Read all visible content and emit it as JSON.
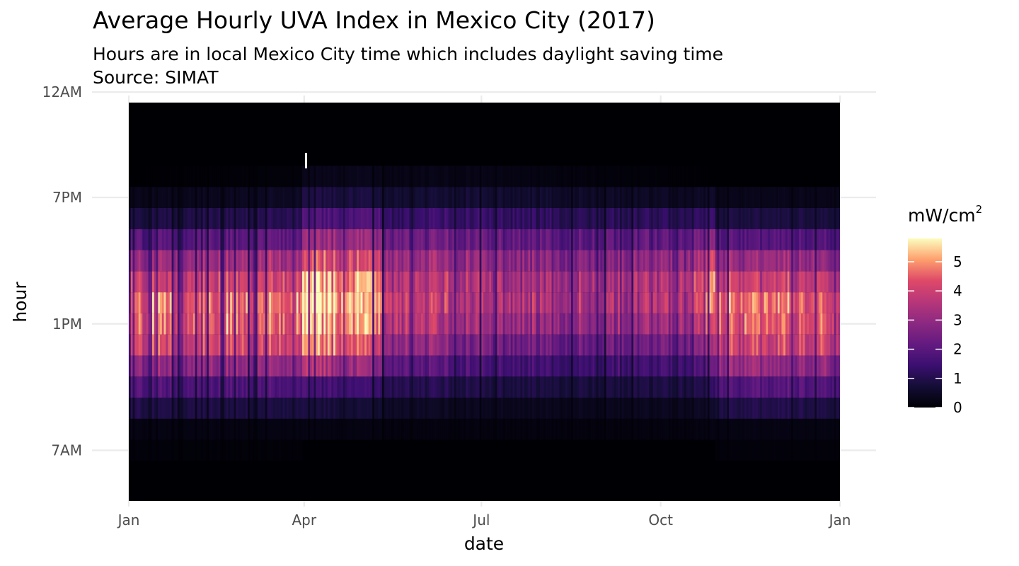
{
  "header": {
    "title": "Average Hourly UVA Index in Mexico City (2017)",
    "subtitle_line1": "Hours are in local Mexico City time which includes daylight saving time",
    "subtitle_line2": "Source: SIMAT"
  },
  "colors": {
    "panel_background": "#000004",
    "gridline": "#ebebeb",
    "colormap": "magma"
  },
  "chart_data": {
    "type": "heatmap",
    "title": "Average Hourly UVA Index in Mexico City (2017)",
    "subtitle": "Hours are in local Mexico City time which includes daylight saving time / Source: SIMAT",
    "xlabel": "date",
    "ylabel": "hour",
    "x_tick_labels": [
      "Jan",
      "Apr",
      "Jul",
      "Oct",
      "Jan"
    ],
    "y_tick_labels": [
      "12AM",
      "7PM",
      "1PM",
      "7AM"
    ],
    "x_range": [
      "2017-01-01",
      "2018-01-01"
    ],
    "legend": {
      "title": "mW/cm",
      "title_superscript": "2",
      "placement": "right",
      "ticks": [
        0,
        1,
        2,
        3,
        4,
        5
      ],
      "range": [
        0,
        5.8
      ]
    },
    "grid": true,
    "hour_rows": [
      {
        "hour": 6,
        "values": {
          "jan": 0.0,
          "apr": 0.0,
          "jul": 0.0,
          "oct": 0.0,
          "nov": 0.0
        }
      },
      {
        "hour": 7,
        "values": {
          "jan": 0.1,
          "apr": 0.0,
          "jul": 0.0,
          "oct": 0.0,
          "nov": 0.1
        }
      },
      {
        "hour": 8,
        "values": {
          "jan": 0.2,
          "apr": 0.2,
          "jul": 0.2,
          "oct": 0.2,
          "nov": 0.2
        }
      },
      {
        "hour": 9,
        "values": {
          "jan": 0.9,
          "apr": 0.8,
          "jul": 0.5,
          "oct": 0.5,
          "nov": 0.9
        }
      },
      {
        "hour": 10,
        "values": {
          "jan": 1.8,
          "apr": 1.6,
          "jul": 1.2,
          "oct": 1.1,
          "nov": 1.8
        }
      },
      {
        "hour": 11,
        "values": {
          "jan": 2.8,
          "apr": 3.4,
          "jul": 2.2,
          "oct": 2.0,
          "nov": 2.8
        }
      },
      {
        "hour": 12,
        "values": {
          "jan": 3.8,
          "apr": 4.7,
          "jul": 3.3,
          "oct": 3.0,
          "nov": 3.8
        }
      },
      {
        "hour": 13,
        "values": {
          "jan": 4.2,
          "apr": 5.2,
          "jul": 4.2,
          "oct": 4.0,
          "nov": 4.2
        }
      },
      {
        "hour": 14,
        "values": {
          "jan": 4.3,
          "apr": 5.4,
          "jul": 4.7,
          "oct": 4.6,
          "nov": 4.3
        }
      },
      {
        "hour": 15,
        "values": {
          "jan": 3.7,
          "apr": 5.0,
          "jul": 4.6,
          "oct": 4.5,
          "nov": 3.7
        }
      },
      {
        "hour": 16,
        "values": {
          "jan": 2.9,
          "apr": 4.0,
          "jul": 4.0,
          "oct": 3.7,
          "nov": 2.9
        }
      },
      {
        "hour": 17,
        "values": {
          "jan": 1.8,
          "apr": 2.9,
          "jul": 3.0,
          "oct": 2.6,
          "nov": 1.8
        }
      },
      {
        "hour": 18,
        "values": {
          "jan": 0.8,
          "apr": 1.7,
          "jul": 1.8,
          "oct": 1.4,
          "nov": 0.8
        }
      },
      {
        "hour": 19,
        "values": {
          "jan": 0.3,
          "apr": 0.8,
          "jul": 0.9,
          "oct": 0.5,
          "nov": 0.3
        }
      },
      {
        "hour": 20,
        "values": {
          "jan": 0.0,
          "apr": 0.3,
          "jul": 0.35,
          "oct": 0.0,
          "nov": 0.0
        }
      },
      {
        "hour": 21,
        "values": {
          "jan": 0.0,
          "apr": 0.0,
          "jul": 0.0,
          "oct": 0.0,
          "nov": 0.0
        }
      },
      {
        "hour": 22,
        "values": {
          "jan": 0.0,
          "apr": 0.0,
          "jul": 0.0,
          "oct": 0.0,
          "nov": 0.0
        }
      },
      {
        "hour": 23,
        "values": {
          "jan": 0.0,
          "apr": 0.0,
          "jul": 0.0,
          "oct": 0.0,
          "nov": 0.0
        }
      },
      {
        "hour": 0,
        "values": {
          "jan": 0.0,
          "apr": 0.0,
          "jul": 0.0,
          "oct": 0.0,
          "nov": 0.0
        }
      },
      {
        "hour": 1,
        "values": {
          "jan": 0.0,
          "apr": 0.0,
          "jul": 0.0,
          "oct": 0.0,
          "nov": 0.0
        }
      },
      {
        "hour": 2,
        "values": {
          "jan": 0.0,
          "apr": 0.0,
          "jul": 0.0,
          "oct": 0.0,
          "nov": 0.0
        }
      },
      {
        "hour": 3,
        "values": {
          "jan": 0.0,
          "apr": 0.0,
          "jul": 0.0,
          "oct": 0.0,
          "nov": 0.0
        }
      },
      {
        "hour": 4,
        "values": {
          "jan": 0.0,
          "apr": 0.0,
          "jul": 0.0,
          "oct": 0.0,
          "nov": 0.0
        }
      },
      {
        "hour": 5,
        "values": {
          "jan": 0.0,
          "apr": 0.0,
          "jul": 0.0,
          "oct": 0.0,
          "nov": 0.0
        }
      }
    ]
  }
}
